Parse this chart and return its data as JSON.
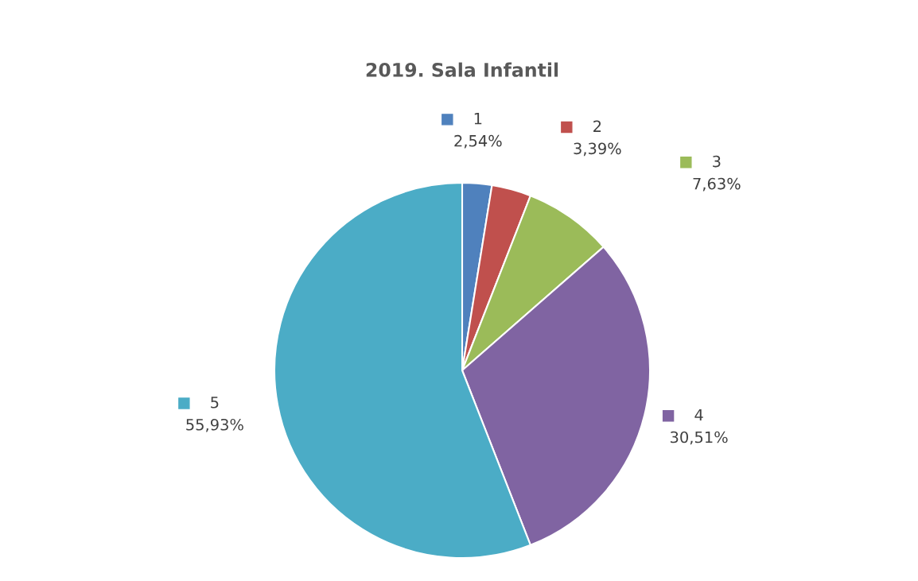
{
  "chart_data": {
    "type": "pie",
    "title": "2019. Sala Infantil",
    "categories": [
      "1",
      "2",
      "3",
      "4",
      "5"
    ],
    "values": [
      2.54,
      3.39,
      7.63,
      30.51,
      55.93
    ],
    "value_labels": [
      "2,54%",
      "3,39%",
      "7,63%",
      "30,51%",
      "55,93%"
    ],
    "colors": [
      "#4f81bd",
      "#c0504d",
      "#9bbb59",
      "#8064a2",
      "#4bacc6"
    ],
    "legend": "right"
  }
}
